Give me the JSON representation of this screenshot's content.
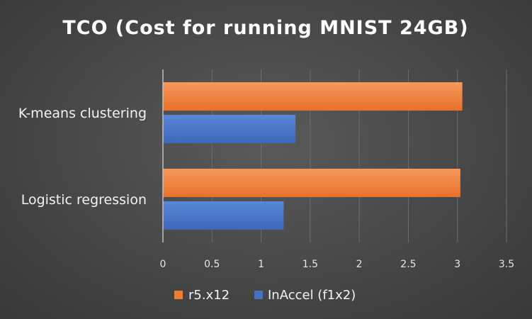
{
  "chart_data": {
    "type": "bar",
    "orientation": "horizontal",
    "title": "TCO (Cost for running MNIST 24GB)",
    "categories": [
      "K-means clustering",
      "Logistic regression"
    ],
    "series": [
      {
        "name": "r5.x12",
        "values": [
          3.05,
          3.03
        ],
        "color": "#ed7d31"
      },
      {
        "name": "InAccel (f1x2)",
        "values": [
          1.35,
          1.23
        ],
        "color": "#4472c4"
      }
    ],
    "xlim": [
      0,
      3.5
    ],
    "xticks": [
      "0",
      "0.5",
      "1",
      "1.5",
      "2",
      "2.5",
      "3",
      "3.5"
    ],
    "grid": true,
    "legend_position": "bottom"
  }
}
